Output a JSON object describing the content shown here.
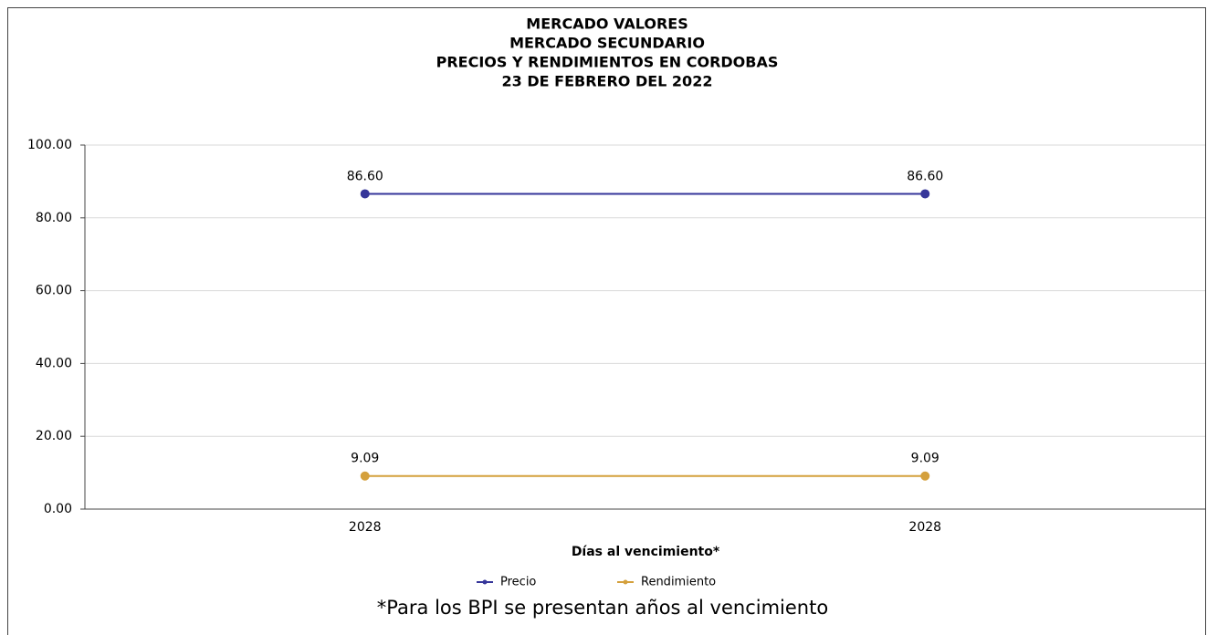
{
  "chart_data": {
    "type": "line",
    "title": [
      "MERCADO VALORES",
      "MERCADO SECUNDARIO",
      "PRECIOS Y RENDIMIENTOS EN CORDOBAS",
      "23 DE FEBRERO DEL 2022"
    ],
    "x_label": "Días al vencimiento*",
    "footnote": "*Para los BPI se presentan años al vencimiento",
    "categories": [
      "2028",
      "2028"
    ],
    "series": [
      {
        "name": "Precio",
        "color": "#36369a",
        "values": [
          86.6,
          86.6
        ],
        "value_labels": [
          "86.60",
          "86.60"
        ]
      },
      {
        "name": "Rendimiento",
        "color": "#d4a03c",
        "values": [
          9.09,
          9.09
        ],
        "value_labels": [
          "9.09",
          "9.09"
        ]
      }
    ],
    "ylim": [
      0,
      100
    ],
    "yticks": [
      {
        "value": 0,
        "label": "0.00"
      },
      {
        "value": 20,
        "label": "20.00"
      },
      {
        "value": 40,
        "label": "40.00"
      },
      {
        "value": 60,
        "label": "60.00"
      },
      {
        "value": 80,
        "label": "80.00"
      },
      {
        "value": 100,
        "label": "100.00"
      }
    ],
    "grid": true,
    "legend": "bottom"
  }
}
